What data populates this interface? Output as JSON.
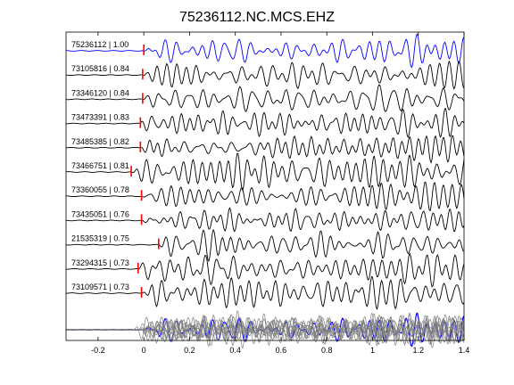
{
  "chart_data": {
    "type": "line",
    "title": "75236112.NC.MCS.EHZ",
    "xlabel": "",
    "ylabel": "",
    "xlim": [
      -0.34,
      1.4
    ],
    "x_ticks": [
      -0.2,
      0,
      0.2,
      0.4,
      0.6,
      0.8,
      1,
      1.2,
      1.4
    ],
    "x_tick_labels": [
      "-0.2",
      "0",
      "0.2",
      "0.4",
      "0.6",
      "0.8",
      "1",
      "1.2",
      "1.4"
    ],
    "grid": false,
    "colors": {
      "reference": "#0000ff",
      "trace": "#000000",
      "stack_other": "#7f7f7f",
      "pick": "#ff0000"
    },
    "series": [
      {
        "name": "75236112 | 1.00",
        "pick_time": 0.0,
        "seed": 1
      },
      {
        "name": "73105816 | 0.84",
        "pick_time": -0.005,
        "seed": 2
      },
      {
        "name": "73346120 | 0.84",
        "pick_time": -0.005,
        "seed": 3
      },
      {
        "name": "73473391 | 0.83",
        "pick_time": -0.015,
        "seed": 4
      },
      {
        "name": "73485385 | 0.82",
        "pick_time": -0.015,
        "seed": 5
      },
      {
        "name": "73466751 | 0.81",
        "pick_time": -0.055,
        "seed": 6
      },
      {
        "name": "73360055 | 0.78",
        "pick_time": -0.01,
        "seed": 7
      },
      {
        "name": "73435051 | 0.76",
        "pick_time": -0.01,
        "seed": 8
      },
      {
        "name": "21535319 | 0.75",
        "pick_time": 0.065,
        "seed": 9
      },
      {
        "name": "73294315 | 0.73",
        "pick_time": -0.025,
        "seed": 10
      },
      {
        "name": "73109571 | 0.73",
        "pick_time": -0.01,
        "seed": 11
      }
    ]
  }
}
